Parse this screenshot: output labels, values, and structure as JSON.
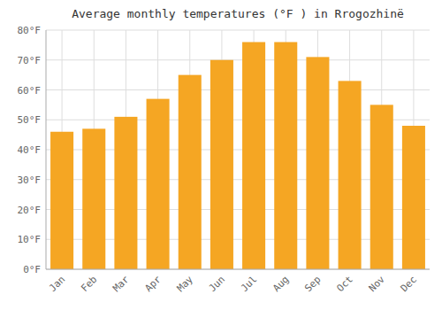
{
  "chart_data": {
    "type": "bar",
    "title": "Average monthly temperatures (°F ) in Rrogozhinë",
    "categories": [
      "Jan",
      "Feb",
      "Mar",
      "Apr",
      "May",
      "Jun",
      "Jul",
      "Aug",
      "Sep",
      "Oct",
      "Nov",
      "Dec"
    ],
    "values": [
      46,
      47,
      51,
      57,
      65,
      70,
      76,
      76,
      71,
      63,
      55,
      48
    ],
    "color": "#F5A623",
    "ylim": [
      0,
      80
    ],
    "yticks": [
      {
        "value": 0,
        "label": "0°F"
      },
      {
        "value": 10,
        "label": "10°F"
      },
      {
        "value": 20,
        "label": "20°F"
      },
      {
        "value": 30,
        "label": "30°F"
      },
      {
        "value": 40,
        "label": "40°F"
      },
      {
        "value": 50,
        "label": "50°F"
      },
      {
        "value": 60,
        "label": "60°F"
      },
      {
        "value": 70,
        "label": "70°F"
      },
      {
        "value": 80,
        "label": "80°F"
      }
    ],
    "grid": true
  }
}
